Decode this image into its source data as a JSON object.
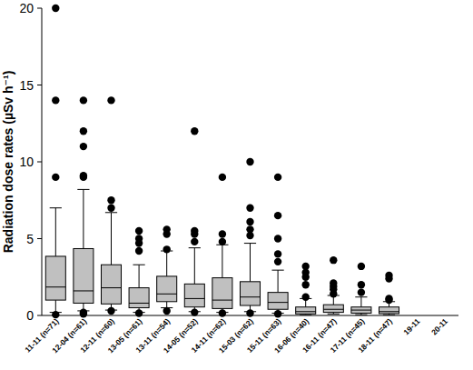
{
  "chart_data": {
    "type": "box",
    "y_label": "Radiation dose rates (µSv h⁻¹)",
    "categories": [
      "11-11 (n=71)",
      "12-04 (n=61)",
      "12-11 (n=60)",
      "13-05 (n=61)",
      "13-11 (n=54)",
      "14-05 (n=52)",
      "14-11 (n=62)",
      "15-03 (n=62)",
      "15-11 (n=63)",
      "16-06 (n=40)",
      "16-11 (n=47)",
      "17-11 (n=45)",
      "18-11 (n=47)",
      "19-11",
      "20-11"
    ],
    "whisker_low": [
      0.2,
      0.3,
      0.35,
      0.2,
      0.5,
      0.25,
      0.2,
      0.25,
      0.15,
      0.05,
      0.1,
      0.05,
      0.05,
      null,
      null
    ],
    "q1": [
      1.0,
      0.8,
      0.75,
      0.5,
      0.9,
      0.55,
      0.45,
      0.65,
      0.4,
      0.1,
      0.2,
      0.15,
      0.12,
      null,
      null
    ],
    "median": [
      1.85,
      1.6,
      1.8,
      0.8,
      1.4,
      1.1,
      1.0,
      1.2,
      0.85,
      0.25,
      0.4,
      0.35,
      0.25,
      null,
      null
    ],
    "q3": [
      3.85,
      4.35,
      3.3,
      1.8,
      2.55,
      2.05,
      2.45,
      2.2,
      1.5,
      0.55,
      0.7,
      0.55,
      0.55,
      null,
      null
    ],
    "whisker_high": [
      7.0,
      8.2,
      6.7,
      3.3,
      4.2,
      4.4,
      4.6,
      4.7,
      2.95,
      1.1,
      1.3,
      1.2,
      0.9,
      null,
      null
    ],
    "outliers": [
      [
        0.05,
        9,
        14,
        20
      ],
      [
        0.1,
        0.2,
        9.0,
        9.1,
        11,
        12,
        14
      ],
      [
        0.3,
        7,
        7.5,
        14
      ],
      [
        0.15,
        4.2,
        4.7,
        5.0,
        5.5
      ],
      [
        0.3,
        4.3,
        5.3,
        5.6
      ],
      [
        0.2,
        4.8,
        5.3,
        5.5,
        12
      ],
      [
        0.15,
        4.8,
        5.3,
        9
      ],
      [
        0.15,
        5.2,
        5.6,
        6.1,
        7,
        10
      ],
      [
        0.1,
        3.5,
        4.0,
        5.0,
        6.5,
        9
      ],
      [
        1.2,
        2.0,
        2.5,
        2.8,
        3.2
      ],
      [
        1.4,
        1.7,
        1.9,
        2.1,
        3.6
      ],
      [
        1.5,
        2.0,
        3.2
      ],
      [
        1.0,
        1.1,
        2.4,
        2.6
      ],
      null,
      null
    ],
    "color": "#c0c0c0",
    "ylim": [
      0,
      20
    ],
    "yticks": [
      0,
      5,
      10,
      15,
      20
    ],
    "grid": false
  }
}
